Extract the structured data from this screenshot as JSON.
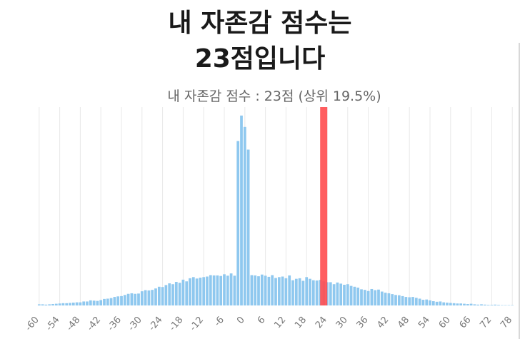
{
  "header": {
    "line1": "내 자존감 점수는",
    "line2": "23점입니다"
  },
  "chart_data": {
    "type": "bar",
    "subtitle": "내 자존감 점수 :  23점 (상위 19.5%)",
    "x": [
      -60,
      -59,
      -58,
      -57,
      -56,
      -55,
      -54,
      -53,
      -52,
      -51,
      -50,
      -49,
      -48,
      -47,
      -46,
      -45,
      -44,
      -43,
      -42,
      -41,
      -40,
      -39,
      -38,
      -37,
      -36,
      -35,
      -34,
      -33,
      -32,
      -31,
      -30,
      -29,
      -28,
      -27,
      -26,
      -25,
      -24,
      -23,
      -22,
      -21,
      -20,
      -19,
      -18,
      -17,
      -16,
      -15,
      -14,
      -13,
      -12,
      -11,
      -10,
      -9,
      -8,
      -7,
      -6,
      -5,
      -4,
      -3,
      -2,
      -1,
      0,
      1,
      2,
      3,
      4,
      5,
      6,
      7,
      8,
      9,
      10,
      11,
      12,
      13,
      14,
      15,
      16,
      17,
      18,
      19,
      20,
      21,
      22,
      23,
      24,
      25,
      26,
      27,
      28,
      29,
      30,
      31,
      32,
      33,
      34,
      35,
      36,
      37,
      38,
      39,
      40,
      41,
      42,
      43,
      44,
      45,
      46,
      47,
      48,
      49,
      50,
      51,
      52,
      53,
      54,
      55,
      56,
      57,
      58,
      59,
      60,
      61,
      62,
      63,
      64,
      65,
      66,
      67,
      68,
      69,
      70,
      71,
      72,
      73,
      74,
      75,
      76,
      77,
      78
    ],
    "values": [
      0.4,
      0.4,
      0.3,
      0.4,
      0.5,
      0.6,
      0.7,
      0.8,
      0.8,
      0.9,
      1.0,
      1.1,
      1.1,
      1.4,
      1.4,
      1.8,
      1.7,
      1.6,
      1.9,
      2.3,
      2.4,
      2.6,
      3.0,
      3.2,
      3.3,
      3.7,
      4.1,
      4.3,
      4.1,
      4.2,
      5.0,
      5.4,
      5.3,
      5.5,
      6.0,
      6.6,
      6.5,
      7.2,
      7.8,
      7.5,
      8.3,
      8.0,
      9.1,
      8.5,
      9.6,
      10.0,
      9.5,
      9.8,
      10.0,
      10.2,
      10.7,
      10.6,
      10.6,
      10.4,
      11.0,
      10.5,
      11.3,
      10.5,
      58.0,
      67.0,
      63.0,
      55.0,
      10.7,
      10.6,
      10.3,
      10.9,
      10.5,
      10.1,
      10.7,
      9.7,
      10.0,
      10.2,
      9.6,
      10.6,
      8.9,
      9.4,
      9.6,
      8.7,
      10.0,
      9.4,
      8.9,
      8.8,
      9.0,
      8.5,
      8.2,
      8.2,
      7.5,
      8.1,
      7.7,
      7.3,
      7.5,
      6.9,
      6.6,
      6.3,
      5.7,
      5.5,
      5.1,
      5.8,
      5.4,
      5.6,
      4.9,
      4.5,
      4.3,
      4.0,
      3.7,
      3.6,
      3.3,
      3.0,
      2.9,
      3.0,
      2.7,
      2.4,
      2.0,
      2.1,
      1.8,
      1.5,
      1.3,
      1.4,
      1.1,
      1.0,
      0.9,
      0.8,
      0.7,
      0.7,
      0.6,
      0.5,
      0.6,
      0.4,
      0.3,
      0.4,
      0.3,
      0.2,
      0.2,
      0.3,
      0.2,
      0.1,
      0.1,
      0.1,
      0.1
    ],
    "xticks": [
      -60,
      -54,
      -48,
      -42,
      -36,
      -30,
      -24,
      -18,
      -12,
      -6,
      0,
      6,
      12,
      18,
      24,
      30,
      36,
      42,
      48,
      54,
      60,
      66,
      72,
      78
    ],
    "xlim": [
      -61,
      79
    ],
    "ylim": [
      0,
      70
    ],
    "marker": {
      "x": 23,
      "color": "#ff4d4f"
    },
    "bar_color": "#8fc8ef",
    "grid": "vertical"
  }
}
